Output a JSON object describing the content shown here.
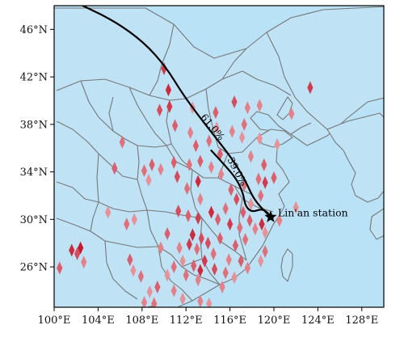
{
  "map": {
    "lon_range": [
      100,
      130
    ],
    "lat_range": [
      22.6,
      48
    ],
    "ocean_color": "#b9e2f7",
    "land_color": "#bfe2f5",
    "border_color": "#777777",
    "x_ticks": [
      {
        "lon": 100,
        "label": "100°E"
      },
      {
        "lon": 104,
        "label": "104°E"
      },
      {
        "lon": 108,
        "label": "108°E"
      },
      {
        "lon": 112,
        "label": "112°E"
      },
      {
        "lon": 116,
        "label": "116°E"
      },
      {
        "lon": 120,
        "label": "120°E"
      },
      {
        "lon": 124,
        "label": "124°E"
      },
      {
        "lon": 128,
        "label": "128°E"
      }
    ],
    "y_ticks": [
      {
        "lat": 46,
        "label": "46°N"
      },
      {
        "lat": 42,
        "label": "42°N"
      },
      {
        "lat": 38,
        "label": "38°N"
      },
      {
        "lat": 34,
        "label": "34°N"
      },
      {
        "lat": 30,
        "label": "30°N"
      },
      {
        "lat": 26,
        "label": "26°N"
      }
    ]
  },
  "station": {
    "label": "Lin'an station",
    "lon": 119.7,
    "lat": 30.2
  },
  "trajectories": [
    {
      "label": "61.0%",
      "path": [
        [
          102.6,
          48.0
        ],
        [
          105.5,
          46.7
        ],
        [
          108.2,
          44.9
        ],
        [
          110.2,
          42.8
        ],
        [
          111.6,
          40.7
        ],
        [
          113.0,
          38.9
        ],
        [
          114.6,
          37.0
        ],
        [
          116.2,
          35.1
        ],
        [
          117.4,
          33.3
        ],
        [
          118.2,
          31.6
        ],
        [
          119.7,
          30.2
        ]
      ],
      "label_lon": 114.2,
      "label_lat": 37.6,
      "label_angle": 50
    },
    {
      "label": "39.0%",
      "path": [
        [
          114.3,
          35.8
        ],
        [
          115.5,
          34.6
        ],
        [
          116.6,
          33.4
        ],
        [
          117.2,
          32.2
        ],
        [
          117.4,
          31.1
        ],
        [
          118.0,
          30.6
        ],
        [
          118.9,
          30.9
        ],
        [
          119.4,
          30.6
        ],
        [
          119.7,
          30.2
        ]
      ],
      "label_lon": 116.4,
      "label_lat": 33.9,
      "label_angle": 62
    }
  ],
  "sites": [
    {
      "lon": 101.6,
      "lat": 27.4,
      "v": 0.9
    },
    {
      "lon": 102.1,
      "lat": 27.1,
      "v": 0.7
    },
    {
      "lon": 102.4,
      "lat": 27.6,
      "v": 1.0
    },
    {
      "lon": 100.5,
      "lat": 25.9,
      "v": 0.6
    },
    {
      "lon": 102.7,
      "lat": 26.4,
      "v": 0.4
    },
    {
      "lon": 105.5,
      "lat": 34.3,
      "v": 0.6
    },
    {
      "lon": 106.2,
      "lat": 36.5,
      "v": 0.5
    },
    {
      "lon": 104.9,
      "lat": 30.6,
      "v": 0.3
    },
    {
      "lon": 106.6,
      "lat": 29.6,
      "v": 0.5
    },
    {
      "lon": 107.3,
      "lat": 30.0,
      "v": 0.3
    },
    {
      "lon": 108.2,
      "lat": 34.1,
      "v": 0.5
    },
    {
      "lon": 108.6,
      "lat": 33.3,
      "v": 0.3
    },
    {
      "lon": 108.9,
      "lat": 34.6,
      "v": 0.6
    },
    {
      "lon": 108.7,
      "lat": 23.9,
      "v": 0.3
    },
    {
      "lon": 108.2,
      "lat": 23.0,
      "v": 0.4
    },
    {
      "lon": 106.9,
      "lat": 26.6,
      "v": 0.6
    },
    {
      "lon": 107.2,
      "lat": 25.7,
      "v": 0.3
    },
    {
      "lon": 107.9,
      "lat": 25.2,
      "v": 0.5
    },
    {
      "lon": 110.0,
      "lat": 42.7,
      "v": 0.8
    },
    {
      "lon": 110.4,
      "lat": 40.9,
      "v": 0.9
    },
    {
      "lon": 110.5,
      "lat": 39.5,
      "v": 0.8
    },
    {
      "lon": 109.6,
      "lat": 39.2,
      "v": 0.7
    },
    {
      "lon": 111.0,
      "lat": 37.9,
      "v": 0.6
    },
    {
      "lon": 112.6,
      "lat": 39.4,
      "v": 0.3
    },
    {
      "lon": 112.4,
      "lat": 37.3,
      "v": 0.4
    },
    {
      "lon": 112.9,
      "lat": 36.2,
      "v": 0.6
    },
    {
      "lon": 109.7,
      "lat": 34.2,
      "v": 0.4
    },
    {
      "lon": 110.9,
      "lat": 34.8,
      "v": 0.6
    },
    {
      "lon": 111.2,
      "lat": 33.6,
      "v": 0.7
    },
    {
      "lon": 112.3,
      "lat": 34.6,
      "v": 0.5
    },
    {
      "lon": 113.3,
      "lat": 34.9,
      "v": 0.6
    },
    {
      "lon": 113.1,
      "lat": 33.2,
      "v": 0.9
    },
    {
      "lon": 114.3,
      "lat": 34.4,
      "v": 0.4
    },
    {
      "lon": 114.1,
      "lat": 36.6,
      "v": 0.5
    },
    {
      "lon": 115.1,
      "lat": 35.5,
      "v": 0.6
    },
    {
      "lon": 114.8,
      "lat": 37.7,
      "v": 0.3
    },
    {
      "lon": 116.2,
      "lat": 37.4,
      "v": 0.4
    },
    {
      "lon": 117.1,
      "lat": 36.9,
      "v": 0.3
    },
    {
      "lon": 117.9,
      "lat": 35.3,
      "v": 0.4
    },
    {
      "lon": 118.7,
      "lat": 36.8,
      "v": 0.3
    },
    {
      "lon": 120.3,
      "lat": 36.3,
      "v": 0.3
    },
    {
      "lon": 119.1,
      "lat": 34.6,
      "v": 0.6
    },
    {
      "lon": 118.6,
      "lat": 33.4,
      "v": 0.5
    },
    {
      "lon": 117.3,
      "lat": 32.9,
      "v": 0.5
    },
    {
      "lon": 116.1,
      "lat": 32.5,
      "v": 0.6
    },
    {
      "lon": 115.2,
      "lat": 33.8,
      "v": 0.4
    },
    {
      "lon": 117.3,
      "lat": 38.0,
      "v": 0.5
    },
    {
      "lon": 116.4,
      "lat": 39.9,
      "v": 0.7
    },
    {
      "lon": 114.7,
      "lat": 39.0,
      "v": 0.6
    },
    {
      "lon": 117.6,
      "lat": 39.4,
      "v": 0.4
    },
    {
      "lon": 118.7,
      "lat": 39.6,
      "v": 0.4
    },
    {
      "lon": 121.6,
      "lat": 38.9,
      "v": 0.4
    },
    {
      "lon": 123.3,
      "lat": 41.1,
      "v": 0.8
    },
    {
      "lon": 122.0,
      "lat": 31.0,
      "v": 0.3
    },
    {
      "lon": 120.0,
      "lat": 33.5,
      "v": 0.6
    },
    {
      "lon": 119.2,
      "lat": 33.1,
      "v": 0.8
    },
    {
      "lon": 112.1,
      "lat": 32.6,
      "v": 0.5
    },
    {
      "lon": 113.3,
      "lat": 31.7,
      "v": 0.4
    },
    {
      "lon": 111.3,
      "lat": 30.7,
      "v": 0.7
    },
    {
      "lon": 112.2,
      "lat": 30.3,
      "v": 0.6
    },
    {
      "lon": 113.1,
      "lat": 30.1,
      "v": 0.8
    },
    {
      "lon": 114.3,
      "lat": 30.6,
      "v": 0.9
    },
    {
      "lon": 114.9,
      "lat": 30.0,
      "v": 0.6
    },
    {
      "lon": 115.6,
      "lat": 30.9,
      "v": 0.5
    },
    {
      "lon": 116.6,
      "lat": 31.7,
      "v": 0.7
    },
    {
      "lon": 117.2,
      "lat": 30.6,
      "v": 0.6
    },
    {
      "lon": 117.9,
      "lat": 31.3,
      "v": 0.3
    },
    {
      "lon": 118.8,
      "lat": 32.0,
      "v": 0.5
    },
    {
      "lon": 116.0,
      "lat": 29.6,
      "v": 0.8
    },
    {
      "lon": 116.9,
      "lat": 29.3,
      "v": 0.5
    },
    {
      "lon": 117.8,
      "lat": 29.9,
      "v": 0.6
    },
    {
      "lon": 118.3,
      "lat": 29.2,
      "v": 0.4
    },
    {
      "lon": 118.9,
      "lat": 29.6,
      "v": 0.9
    },
    {
      "lon": 119.2,
      "lat": 28.9,
      "v": 0.3
    },
    {
      "lon": 120.5,
      "lat": 29.9,
      "v": 0.4
    },
    {
      "lon": 112.6,
      "lat": 28.7,
      "v": 0.9
    },
    {
      "lon": 113.4,
      "lat": 28.4,
      "v": 0.7
    },
    {
      "lon": 113.0,
      "lat": 27.5,
      "v": 0.5
    },
    {
      "lon": 112.3,
      "lat": 27.9,
      "v": 0.8
    },
    {
      "lon": 111.4,
      "lat": 27.6,
      "v": 0.4
    },
    {
      "lon": 114.0,
      "lat": 28.0,
      "v": 0.7
    },
    {
      "lon": 115.1,
      "lat": 28.4,
      "v": 0.6
    },
    {
      "lon": 114.5,
      "lat": 27.1,
      "v": 0.5
    },
    {
      "lon": 113.7,
      "lat": 26.5,
      "v": 0.8
    },
    {
      "lon": 112.7,
      "lat": 26.1,
      "v": 0.6
    },
    {
      "lon": 111.7,
      "lat": 26.5,
      "v": 0.3
    },
    {
      "lon": 112.0,
      "lat": 25.3,
      "v": 0.5
    },
    {
      "lon": 113.1,
      "lat": 24.9,
      "v": 0.4
    },
    {
      "lon": 114.6,
      "lat": 25.8,
      "v": 0.7
    },
    {
      "lon": 115.9,
      "lat": 26.6,
      "v": 0.4
    },
    {
      "lon": 116.5,
      "lat": 27.8,
      "v": 0.6
    },
    {
      "lon": 117.4,
      "lat": 28.3,
      "v": 0.5
    },
    {
      "lon": 110.3,
      "lat": 28.8,
      "v": 0.6
    },
    {
      "lon": 109.7,
      "lat": 27.6,
      "v": 0.4
    },
    {
      "lon": 110.9,
      "lat": 26.0,
      "v": 0.5
    },
    {
      "lon": 110.3,
      "lat": 25.3,
      "v": 0.3
    },
    {
      "lon": 109.4,
      "lat": 24.3,
      "v": 0.6
    },
    {
      "lon": 110.9,
      "lat": 24.0,
      "v": 0.4
    },
    {
      "lon": 111.7,
      "lat": 23.3,
      "v": 0.3
    },
    {
      "lon": 113.3,
      "lat": 23.1,
      "v": 0.4
    },
    {
      "lon": 114.1,
      "lat": 22.9,
      "v": 0.3
    },
    {
      "lon": 109.1,
      "lat": 22.9,
      "v": 0.5
    },
    {
      "lon": 113.3,
      "lat": 25.7,
      "v": 0.9
    },
    {
      "lon": 115.3,
      "lat": 24.3,
      "v": 0.4
    },
    {
      "lon": 116.4,
      "lat": 25.1,
      "v": 0.3
    },
    {
      "lon": 117.6,
      "lat": 25.9,
      "v": 0.4
    },
    {
      "lon": 118.8,
      "lat": 26.5,
      "v": 0.3
    },
    {
      "lon": 119.2,
      "lat": 27.3,
      "v": 0.5
    },
    {
      "lon": 117.0,
      "lat": 26.5,
      "v": 0.6
    },
    {
      "lon": 115.6,
      "lat": 25.5,
      "v": 0.5
    }
  ]
}
